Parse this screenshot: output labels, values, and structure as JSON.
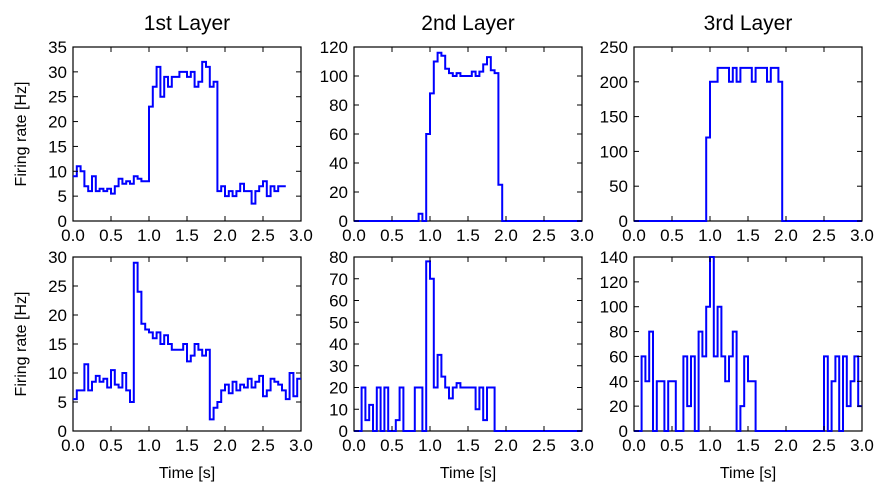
{
  "chart_data": [
    {
      "type": "line",
      "step": true,
      "color": "#0000ff",
      "title": "1st Layer",
      "xlabel": "",
      "ylabel": "Firing rate [Hz]",
      "xlim": [
        0,
        3
      ],
      "ylim": [
        0,
        35
      ],
      "xticks": [
        0,
        0.5,
        1,
        1.5,
        2,
        2.5,
        3
      ],
      "xtick_labels": [
        "0.0",
        "0.5",
        "1.0",
        "1.5",
        "2.0",
        "2.5",
        "3.0"
      ],
      "yticks": [
        0,
        5,
        10,
        15,
        20,
        25,
        30,
        35
      ],
      "ytick_labels": [
        "0",
        "5",
        "10",
        "15",
        "20",
        "25",
        "30",
        "35"
      ],
      "bin_width": 0.05,
      "values": [
        9,
        11,
        10,
        7,
        6,
        9,
        6,
        6.5,
        6,
        6.5,
        5.5,
        7,
        8.5,
        7.5,
        8,
        7.5,
        9,
        8.5,
        8,
        8,
        23,
        27,
        31,
        25,
        29,
        27,
        29,
        29,
        30,
        30,
        29,
        30,
        27,
        28,
        32,
        31,
        27,
        28,
        6,
        7,
        5,
        6,
        5,
        6,
        7.5,
        6,
        6,
        3.5,
        6,
        7,
        8,
        5,
        7,
        6,
        7,
        7
      ]
    },
    {
      "type": "line",
      "step": true,
      "color": "#0000ff",
      "title": "2nd Layer",
      "xlabel": "",
      "ylabel": "",
      "xlim": [
        0,
        3
      ],
      "ylim": [
        0,
        120
      ],
      "xticks": [
        0,
        0.5,
        1,
        1.5,
        2,
        2.5,
        3
      ],
      "xtick_labels": [
        "0.0",
        "0.5",
        "1.0",
        "1.5",
        "2.0",
        "2.5",
        "3.0"
      ],
      "yticks": [
        0,
        20,
        40,
        60,
        80,
        100,
        120
      ],
      "ytick_labels": [
        "0",
        "20",
        "40",
        "60",
        "80",
        "100",
        "120"
      ],
      "bin_width": 0.05,
      "values": [
        0,
        0,
        0,
        0,
        0,
        0,
        0,
        0,
        0,
        0,
        0,
        0,
        0,
        0,
        0,
        0,
        0,
        5,
        0,
        60,
        88,
        110,
        116,
        114,
        105,
        102,
        100,
        102,
        100,
        100,
        100,
        103,
        100,
        103,
        108,
        113,
        104,
        102,
        25,
        0,
        0,
        0,
        0,
        0,
        0,
        0,
        0,
        0,
        0,
        0,
        0,
        0,
        0,
        0,
        0,
        0,
        0,
        0,
        0,
        0
      ]
    },
    {
      "type": "line",
      "step": true,
      "color": "#0000ff",
      "title": "3rd Layer",
      "xlabel": "",
      "ylabel": "",
      "xlim": [
        0,
        3
      ],
      "ylim": [
        0,
        250
      ],
      "xticks": [
        0,
        0.5,
        1,
        1.5,
        2,
        2.5,
        3
      ],
      "xtick_labels": [
        "0.0",
        "0.5",
        "1.0",
        "1.5",
        "2.0",
        "2.5",
        "3.0"
      ],
      "yticks": [
        0,
        50,
        100,
        150,
        200,
        250
      ],
      "ytick_labels": [
        "0",
        "50",
        "100",
        "150",
        "200",
        "250"
      ],
      "bin_width": 0.05,
      "values": [
        0,
        0,
        0,
        0,
        0,
        0,
        0,
        0,
        0,
        0,
        0,
        0,
        0,
        0,
        0,
        0,
        0,
        0,
        0,
        120,
        200,
        200,
        220,
        220,
        220,
        200,
        220,
        200,
        220,
        220,
        220,
        200,
        220,
        220,
        220,
        200,
        220,
        220,
        200,
        0,
        0,
        0,
        0,
        0,
        0,
        0,
        0,
        0,
        0,
        0,
        0,
        0,
        0,
        0,
        0,
        0,
        0,
        0,
        0,
        0
      ]
    },
    {
      "type": "line",
      "step": true,
      "color": "#0000ff",
      "title": "",
      "xlabel": "Time [s]",
      "ylabel": "Firing rate [Hz]",
      "xlim": [
        0,
        3
      ],
      "ylim": [
        0,
        30
      ],
      "xticks": [
        0,
        0.5,
        1,
        1.5,
        2,
        2.5,
        3
      ],
      "xtick_labels": [
        "0.0",
        "0.5",
        "1.0",
        "1.5",
        "2.0",
        "2.5",
        "3.0"
      ],
      "yticks": [
        0,
        5,
        10,
        15,
        20,
        25,
        30
      ],
      "ytick_labels": [
        "0",
        "5",
        "10",
        "15",
        "20",
        "25",
        "30"
      ],
      "bin_width": 0.05,
      "values": [
        5.5,
        7,
        7,
        11.5,
        7,
        8.5,
        9.5,
        8.5,
        9,
        7.5,
        10.5,
        8,
        7.5,
        10,
        7,
        5,
        29,
        24,
        18.5,
        17.5,
        17,
        16,
        17,
        15,
        16.5,
        15,
        14,
        14,
        14,
        15,
        12,
        13,
        15,
        14,
        13,
        14,
        2,
        4,
        5,
        7,
        8,
        6.5,
        8.5,
        7,
        8,
        7.5,
        9,
        7.5,
        8.5,
        9.5,
        6,
        7,
        9,
        8.5,
        8,
        7,
        5.5,
        10,
        6,
        9
      ]
    },
    {
      "type": "line",
      "step": true,
      "color": "#0000ff",
      "title": "",
      "xlabel": "Time [s]",
      "ylabel": "",
      "xlim": [
        0,
        3
      ],
      "ylim": [
        0,
        80
      ],
      "xticks": [
        0,
        0.5,
        1,
        1.5,
        2,
        2.5,
        3
      ],
      "xtick_labels": [
        "0.0",
        "0.5",
        "1.0",
        "1.5",
        "2.0",
        "2.5",
        "3.0"
      ],
      "yticks": [
        0,
        10,
        20,
        30,
        40,
        50,
        60,
        70,
        80
      ],
      "ytick_labels": [
        "0",
        "10",
        "20",
        "30",
        "40",
        "50",
        "60",
        "70",
        "80"
      ],
      "bin_width": 0.05,
      "values": [
        0,
        0,
        20,
        5,
        12,
        0,
        20,
        0,
        20,
        0,
        0,
        5,
        20,
        0,
        0,
        0,
        20,
        20,
        0,
        78,
        70,
        20,
        35,
        25,
        20,
        15,
        20,
        22,
        20,
        20,
        20,
        20,
        10,
        20,
        5,
        20,
        20,
        0,
        0,
        0,
        0,
        0,
        0,
        0,
        0,
        0,
        0,
        0,
        0,
        0,
        0,
        0,
        0,
        0,
        0,
        0,
        0,
        0,
        0,
        0
      ]
    },
    {
      "type": "line",
      "step": true,
      "color": "#0000ff",
      "title": "",
      "xlabel": "Time [s]",
      "ylabel": "",
      "xlim": [
        0,
        3
      ],
      "ylim": [
        0,
        140
      ],
      "xticks": [
        0,
        0.5,
        1,
        1.5,
        2,
        2.5,
        3
      ],
      "xtick_labels": [
        "0.0",
        "0.5",
        "1.0",
        "1.5",
        "2.0",
        "2.5",
        "3.0"
      ],
      "yticks": [
        0,
        20,
        40,
        60,
        80,
        100,
        120,
        140
      ],
      "ytick_labels": [
        "0",
        "20",
        "40",
        "60",
        "80",
        "100",
        "120",
        "140"
      ],
      "bin_width": 0.05,
      "values": [
        0,
        0,
        60,
        40,
        80,
        0,
        40,
        40,
        0,
        40,
        40,
        0,
        0,
        60,
        20,
        60,
        0,
        80,
        60,
        100,
        140,
        60,
        100,
        60,
        40,
        60,
        80,
        0,
        20,
        60,
        40,
        40,
        0,
        0,
        0,
        0,
        0,
        0,
        0,
        0,
        0,
        0,
        0,
        0,
        0,
        0,
        0,
        0,
        0,
        0,
        60,
        0,
        40,
        60,
        0,
        60,
        20,
        40,
        60,
        20
      ]
    }
  ]
}
